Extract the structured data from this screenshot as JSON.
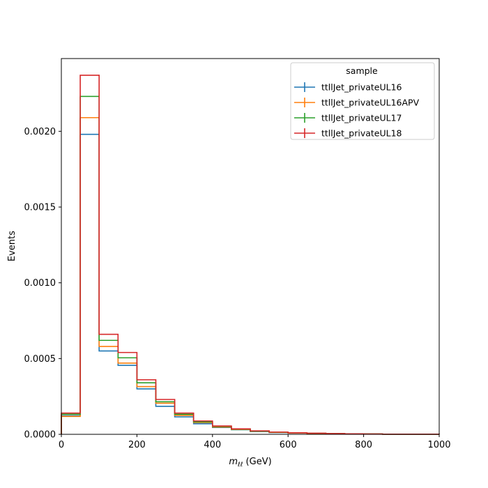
{
  "chart_data": {
    "type": "line",
    "style": "step-histogram",
    "xlabel_var": "m",
    "xlabel_sub": "ℓℓ",
    "xlabel_unit": " (GeV)",
    "ylabel": "Events",
    "xlim": [
      0,
      1000
    ],
    "ylim": [
      0,
      0.00248
    ],
    "x_ticks": [
      0,
      200,
      400,
      600,
      800,
      1000
    ],
    "x_tick_labels": [
      "0",
      "200",
      "400",
      "600",
      "800",
      "1000"
    ],
    "y_ticks": [
      0,
      0.0005,
      0.001,
      0.0015,
      0.002
    ],
    "y_tick_labels": [
      "0.0000",
      "0.0005",
      "0.0010",
      "0.0015",
      "0.0020"
    ],
    "grid": false,
    "legend_title": "sample",
    "legend_position": "top-right",
    "bin_edges": [
      0,
      50,
      100,
      150,
      200,
      250,
      300,
      350,
      400,
      450,
      500,
      550,
      600,
      650,
      700,
      750,
      800,
      850,
      900,
      950,
      1000
    ],
    "series": [
      {
        "name": "ttllJet_privateUL16",
        "color": "#1f77b4",
        "values": [
          0.000122,
          0.00198,
          0.00055,
          0.000455,
          0.0003,
          0.000185,
          0.000115,
          7e-05,
          4.5e-05,
          3e-05,
          1.8e-05,
          1.2e-05,
          8e-06,
          6e-06,
          4e-06,
          3e-06,
          2e-06,
          1e-06,
          1e-06,
          1e-06
        ]
      },
      {
        "name": "ttllJet_privateUL16APV",
        "color": "#ff7f0e",
        "values": [
          0.000118,
          0.00209,
          0.00058,
          0.00047,
          0.000315,
          0.000205,
          0.000125,
          7.8e-05,
          4.8e-05,
          3.2e-05,
          2e-05,
          1.3e-05,
          9e-06,
          6e-06,
          4e-06,
          3e-06,
          2e-06,
          1e-06,
          1e-06,
          1e-06
        ]
      },
      {
        "name": "ttllJet_privateUL17",
        "color": "#2ca02c",
        "values": [
          0.000132,
          0.00223,
          0.00062,
          0.000505,
          0.00034,
          0.000215,
          0.000132,
          8.2e-05,
          5.2e-05,
          3.4e-05,
          2.1e-05,
          1.4e-05,
          1e-05,
          7e-06,
          5e-06,
          3e-06,
          2e-06,
          1e-06,
          1e-06,
          1e-06
        ]
      },
      {
        "name": "ttllJet_privateUL18",
        "color": "#d62728",
        "values": [
          0.00014,
          0.00237,
          0.00066,
          0.00054,
          0.00036,
          0.00023,
          0.00014,
          8.8e-05,
          5.5e-05,
          3.6e-05,
          2.3e-05,
          1.5e-05,
          1e-05,
          7e-06,
          5e-06,
          3e-06,
          2e-06,
          1e-06,
          1e-06,
          1e-06
        ]
      }
    ]
  }
}
